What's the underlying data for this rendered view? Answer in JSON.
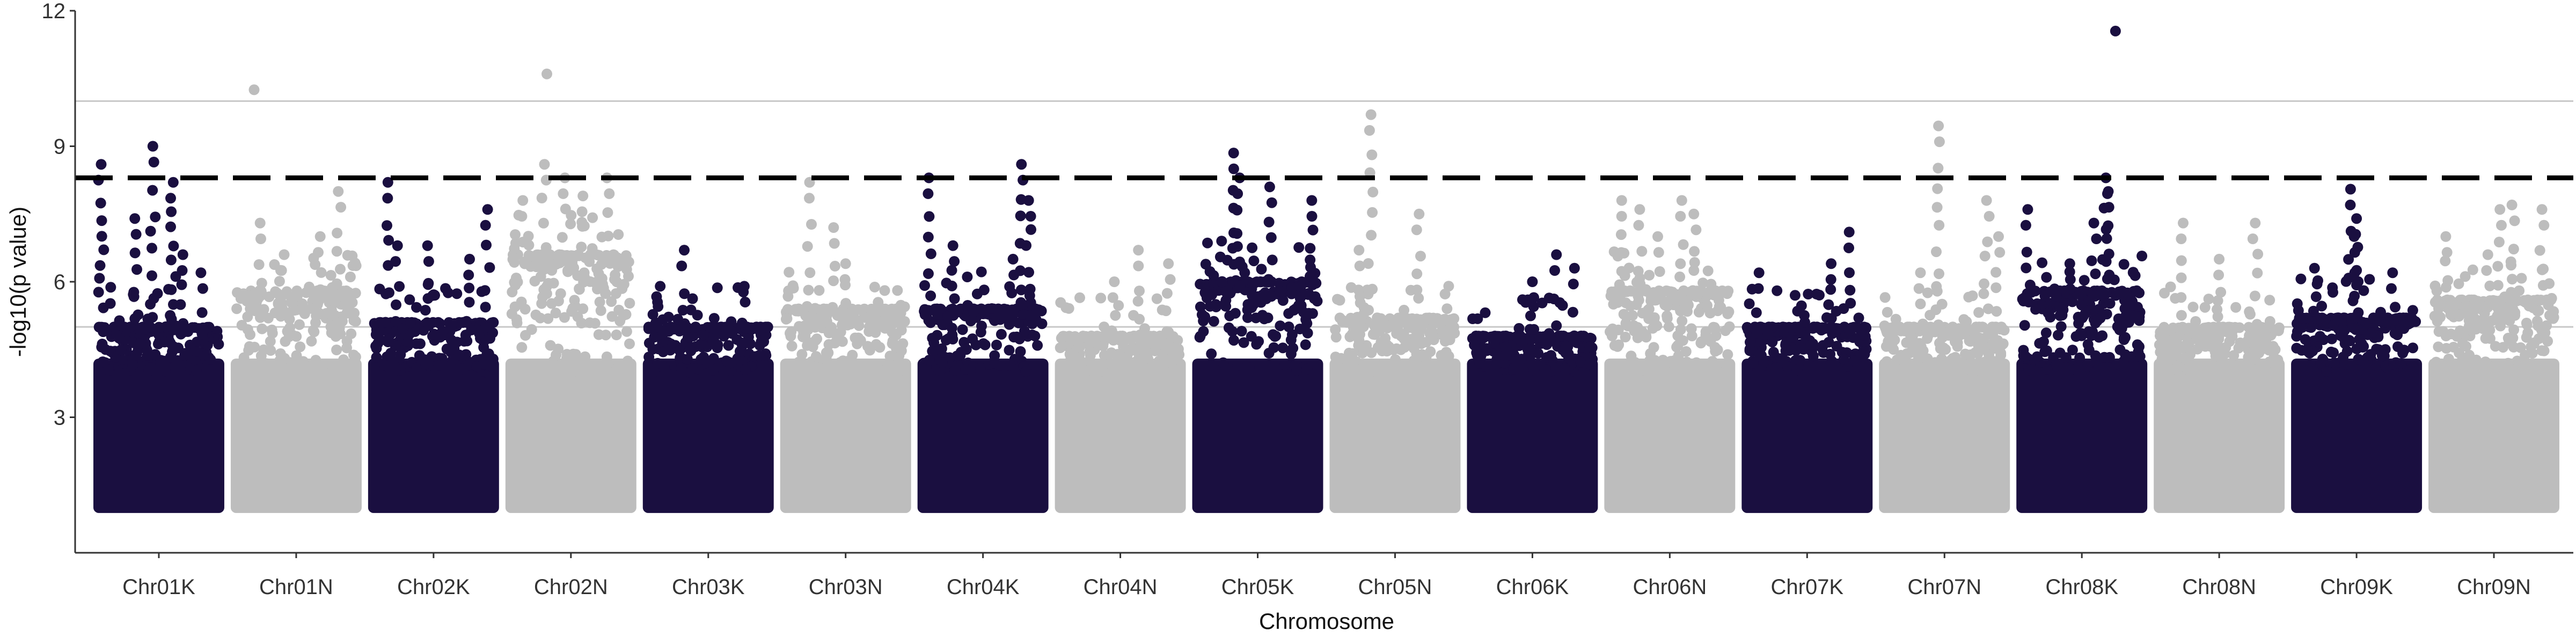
{
  "chart_data": {
    "type": "scatter",
    "title": "",
    "xlabel": "Chromosome",
    "ylabel": "-log10(p value)",
    "ylim": [
      0,
      12
    ],
    "y_ticks": [
      3,
      6,
      9,
      12
    ],
    "grid": "horizontal reference lines at 5 and 10",
    "significance_threshold": 8.3,
    "reference_lines": [
      5,
      10
    ],
    "legend": "none",
    "colors": {
      "odd": "#1a0f40",
      "even": "#bdbdbd",
      "threshold": "#000000",
      "reference": "#c8c8c8",
      "axis": "#333333"
    },
    "chromosomes": [
      {
        "name": "Chr01K",
        "body_max": 5.0,
        "peaks": [
          [
            0.02,
            8.6
          ],
          [
            0.45,
            9.0
          ],
          [
            0.62,
            8.2
          ],
          [
            0.3,
            7.4
          ],
          [
            0.7,
            6.6
          ],
          [
            0.85,
            6.2
          ]
        ]
      },
      {
        "name": "Chr01N",
        "body_max": 5.8,
        "peaks": [
          [
            0.15,
            10.25
          ],
          [
            0.2,
            7.3
          ],
          [
            0.85,
            8.0
          ],
          [
            0.7,
            7.0
          ],
          [
            0.4,
            6.6
          ]
        ]
      },
      {
        "name": "Chr02K",
        "body_max": 5.1,
        "peaks": [
          [
            0.12,
            8.2
          ],
          [
            0.95,
            7.6
          ],
          [
            0.2,
            6.8
          ],
          [
            0.45,
            6.8
          ],
          [
            0.8,
            6.5
          ]
        ]
      },
      {
        "name": "Chr02N",
        "body_max": 6.6,
        "peaks": [
          [
            0.3,
            10.6
          ],
          [
            0.28,
            8.6
          ],
          [
            0.45,
            8.3
          ],
          [
            0.8,
            8.3
          ],
          [
            0.1,
            7.8
          ],
          [
            0.6,
            7.9
          ]
        ]
      },
      {
        "name": "Chr03K",
        "body_max": 5.0,
        "peaks": [
          [
            0.3,
            6.7
          ],
          [
            0.1,
            5.9
          ],
          [
            0.8,
            5.9
          ]
        ]
      },
      {
        "name": "Chr03N",
        "body_max": 5.4,
        "peaks": [
          [
            0.2,
            8.2
          ],
          [
            0.4,
            7.2
          ],
          [
            0.5,
            6.4
          ]
        ]
      },
      {
        "name": "Chr04K",
        "body_max": 5.4,
        "peaks": [
          [
            0.05,
            8.3
          ],
          [
            0.82,
            8.6
          ],
          [
            0.88,
            7.8
          ],
          [
            0.25,
            6.8
          ],
          [
            0.75,
            6.5
          ]
        ]
      },
      {
        "name": "Chr04N",
        "body_max": 4.8,
        "peaks": [
          [
            0.65,
            6.7
          ],
          [
            0.45,
            6.0
          ],
          [
            0.9,
            6.4
          ]
        ]
      },
      {
        "name": "Chr05K",
        "body_max": 6.0,
        "peaks": [
          [
            0.3,
            8.85
          ],
          [
            0.35,
            8.3
          ],
          [
            0.6,
            8.1
          ],
          [
            0.95,
            7.8
          ],
          [
            0.2,
            6.9
          ]
        ]
      },
      {
        "name": "Chr05N",
        "body_max": 5.2,
        "peaks": [
          [
            0.3,
            9.7
          ],
          [
            0.7,
            7.5
          ],
          [
            0.2,
            6.7
          ]
        ]
      },
      {
        "name": "Chr06K",
        "body_max": 4.8,
        "peaks": [
          [
            0.7,
            6.6
          ],
          [
            0.5,
            6.0
          ],
          [
            0.85,
            6.3
          ]
        ]
      },
      {
        "name": "Chr06N",
        "body_max": 5.8,
        "peaks": [
          [
            0.1,
            7.8
          ],
          [
            0.25,
            7.6
          ],
          [
            0.6,
            7.8
          ],
          [
            0.7,
            7.5
          ],
          [
            0.4,
            7.0
          ]
        ]
      },
      {
        "name": "Chr07K",
        "body_max": 5.0,
        "peaks": [
          [
            0.1,
            6.2
          ],
          [
            0.7,
            6.4
          ],
          [
            0.85,
            7.1
          ],
          [
            0.4,
            5.7
          ]
        ]
      },
      {
        "name": "Chr07N",
        "body_max": 5.0,
        "peaks": [
          [
            0.45,
            9.45
          ],
          [
            0.85,
            7.8
          ],
          [
            0.3,
            6.2
          ],
          [
            0.95,
            7.0
          ]
        ]
      },
      {
        "name": "Chr08K",
        "body_max": 5.8,
        "peaks": [
          [
            0.78,
            11.55
          ],
          [
            0.7,
            8.3
          ],
          [
            0.72,
            8.0
          ],
          [
            0.05,
            7.6
          ],
          [
            0.6,
            7.3
          ],
          [
            0.4,
            6.4
          ]
        ]
      },
      {
        "name": "Chr08N",
        "body_max": 5.0,
        "peaks": [
          [
            0.2,
            7.3
          ],
          [
            0.8,
            7.3
          ],
          [
            0.5,
            6.5
          ]
        ]
      },
      {
        "name": "Chr09K",
        "body_max": 5.2,
        "peaks": [
          [
            0.15,
            6.3
          ],
          [
            0.45,
            8.05
          ],
          [
            0.5,
            7.4
          ],
          [
            0.48,
            7.0
          ],
          [
            0.8,
            6.2
          ]
        ]
      },
      {
        "name": "Chr09N",
        "body_max": 5.6,
        "peaks": [
          [
            0.1,
            7.0
          ],
          [
            0.55,
            7.6
          ],
          [
            0.65,
            7.7
          ],
          [
            0.9,
            7.6
          ],
          [
            0.45,
            6.6
          ]
        ]
      }
    ]
  }
}
